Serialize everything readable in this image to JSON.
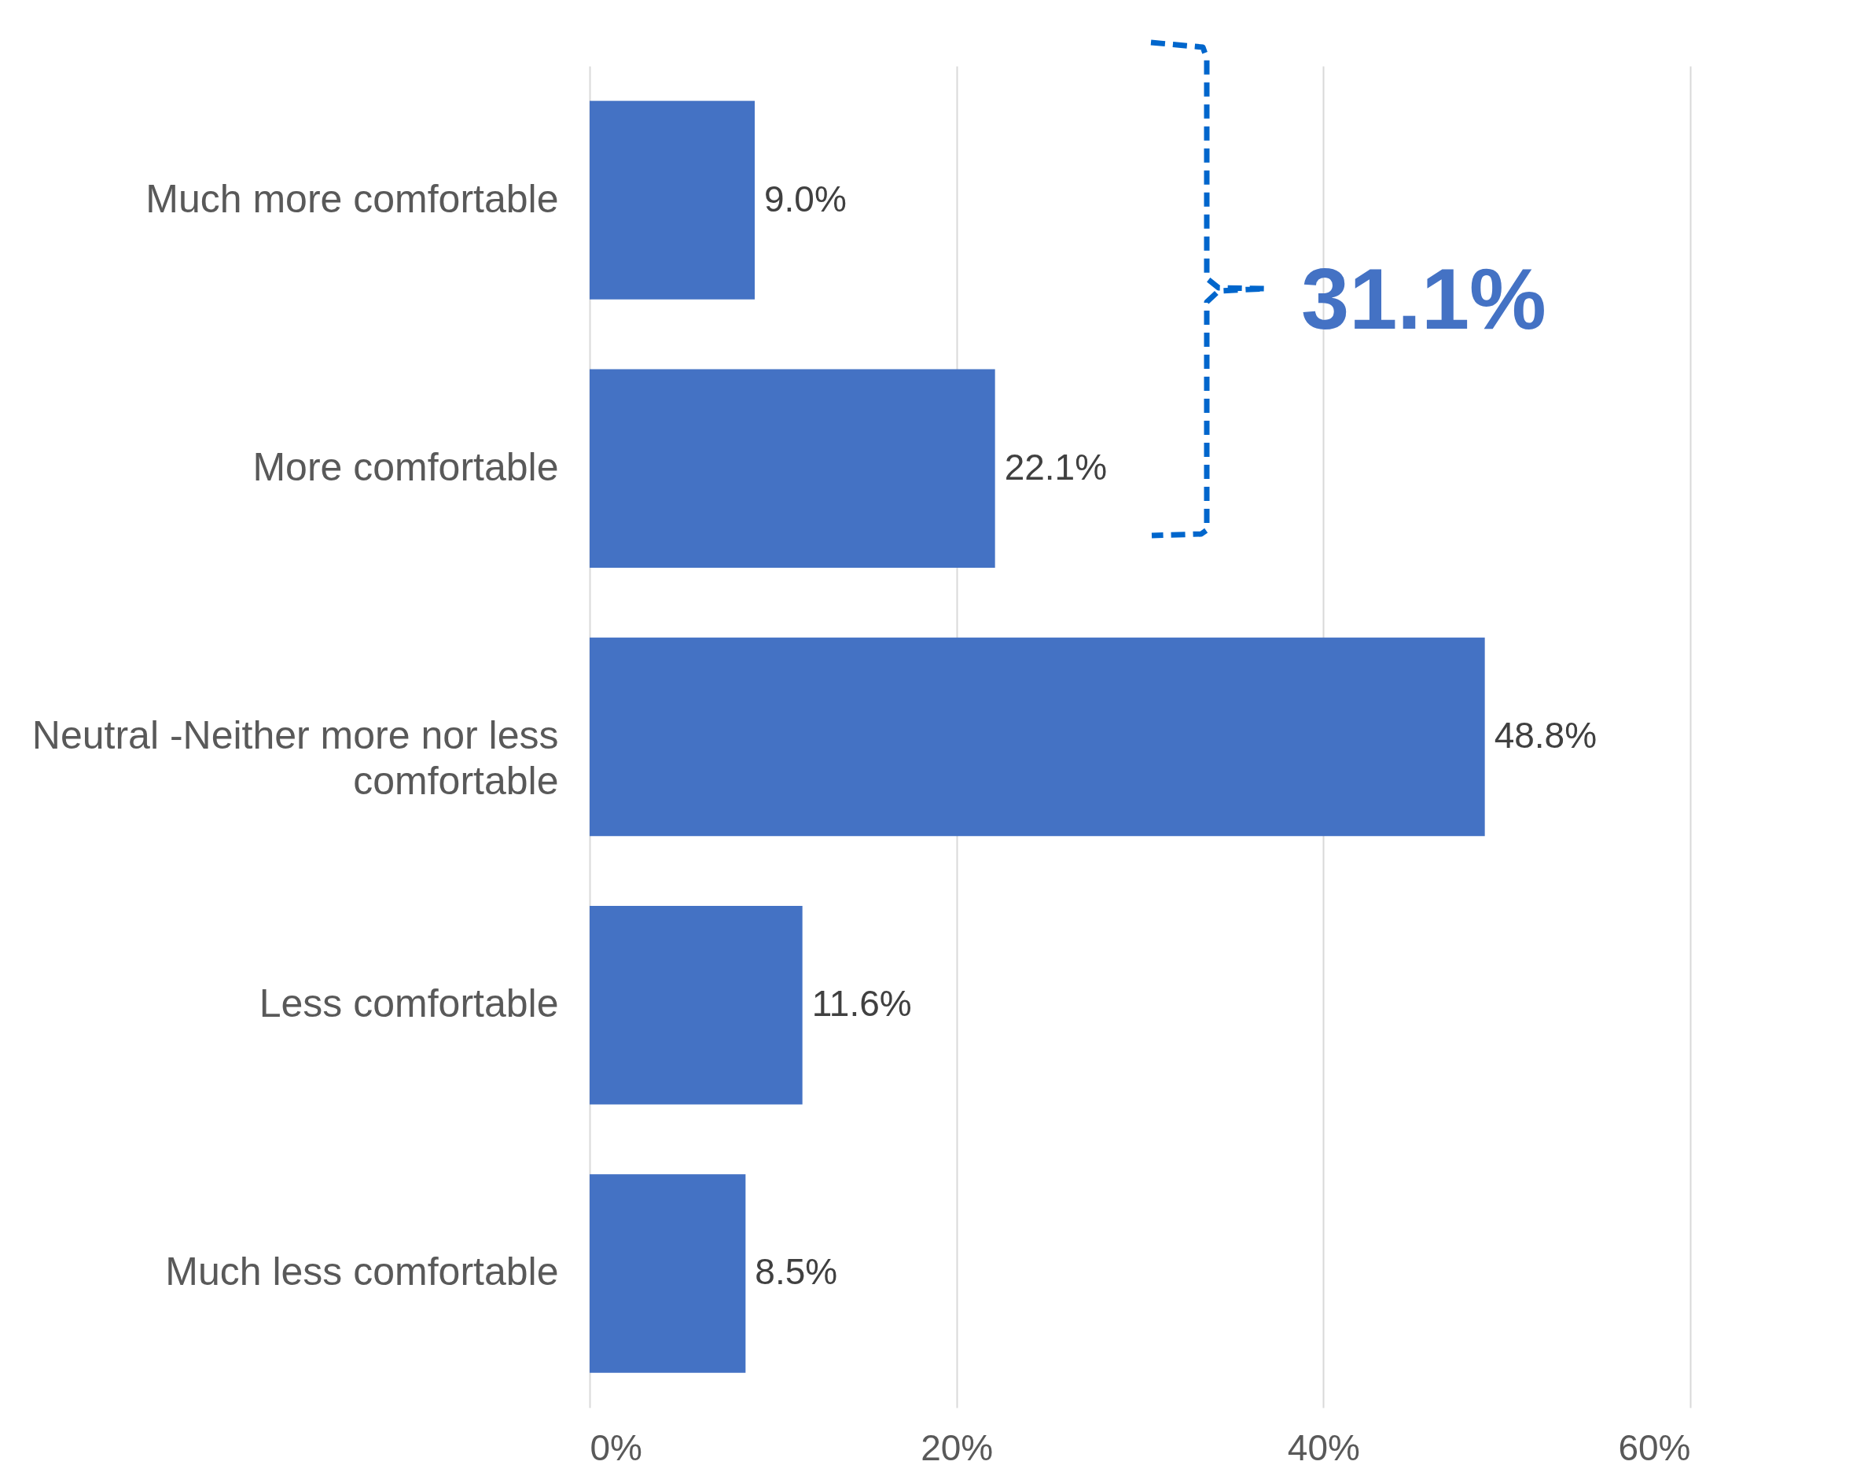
{
  "chart_data": {
    "type": "bar",
    "orientation": "horizontal",
    "categories": [
      "Much more comfortable",
      "More comfortable",
      "Neutral -Neither more nor less comfortable",
      "Less comfortable",
      "Much less comfortable"
    ],
    "values": [
      9.0,
      22.1,
      48.8,
      11.6,
      8.5
    ],
    "value_labels": [
      "9.0%",
      "22.1%",
      "48.8%",
      "11.6%",
      "8.5%"
    ],
    "color": "#4472c4",
    "xlim": [
      0,
      60
    ],
    "xticks": [
      {
        "value": 0,
        "label": "0%"
      },
      {
        "value": 20,
        "label": "20%"
      },
      {
        "value": 40,
        "label": "40%"
      },
      {
        "value": 60,
        "label": "60%"
      }
    ],
    "grid": "x",
    "annotations": [
      "31.1%"
    ]
  }
}
